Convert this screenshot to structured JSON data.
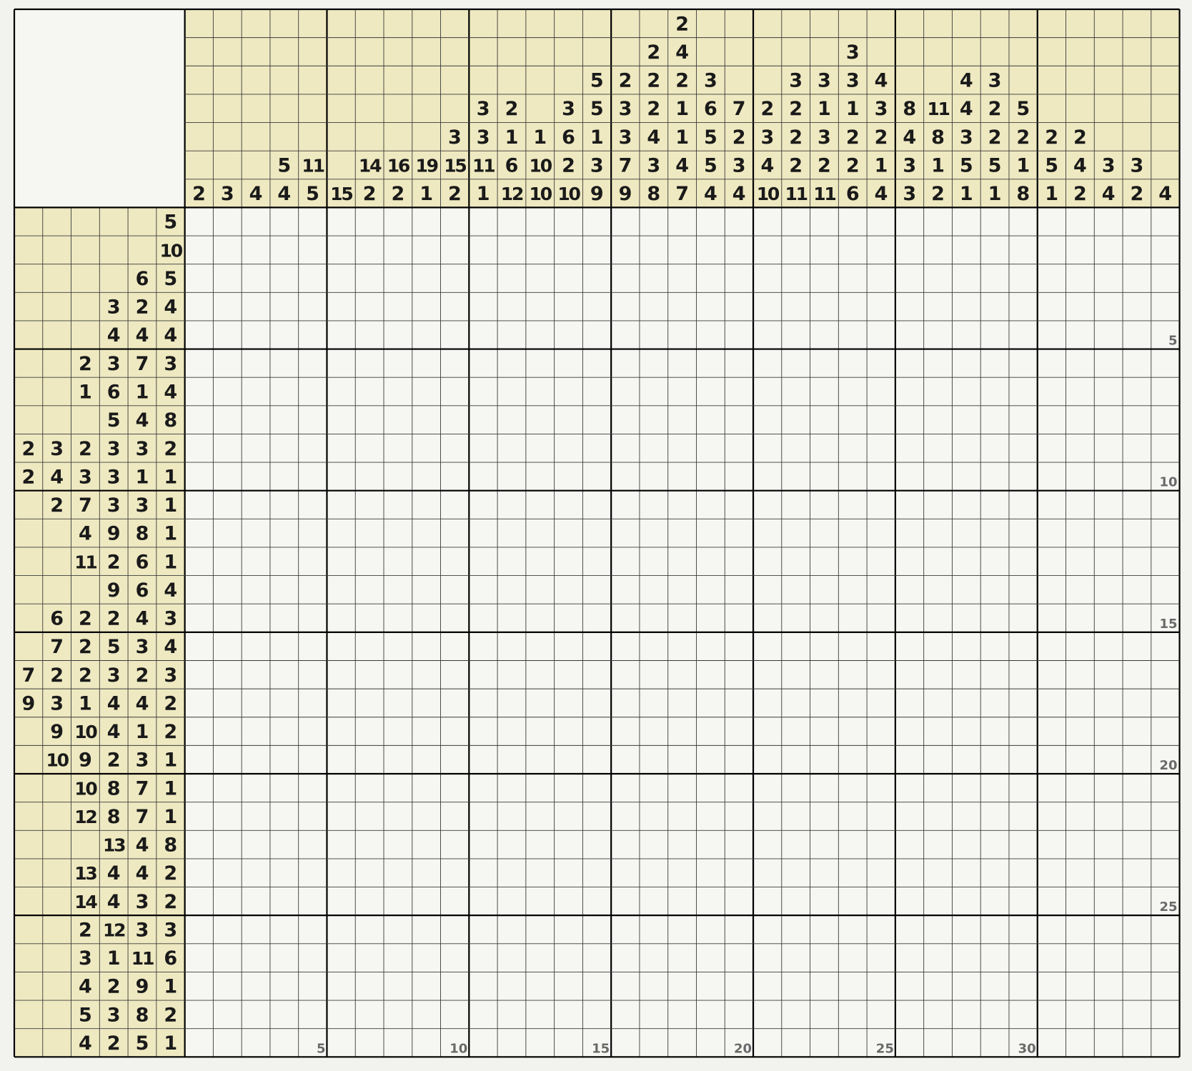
{
  "puzzle": {
    "colors": {
      "page_bg": "#f2f2ee",
      "clue_bg": "#efe9c1",
      "grid_bg": "#f6f6f3",
      "thin_line": "#3a3a3a",
      "thick_line": "#000000",
      "clue_text": "#1a1a1a",
      "index_text": "#6a6a6a"
    },
    "col_clues": [
      [
        "2"
      ],
      [
        "3"
      ],
      [
        "4"
      ],
      [
        "5",
        "4"
      ],
      [
        "11",
        "5"
      ],
      [
        "15"
      ],
      [
        "14",
        "2"
      ],
      [
        "16",
        "2"
      ],
      [
        "19",
        "1"
      ],
      [
        "3",
        "15",
        "2"
      ],
      [
        "3",
        "3",
        "11",
        "1"
      ],
      [
        "2",
        "1",
        "6",
        "12"
      ],
      [
        "1",
        "10",
        "10"
      ],
      [
        "3",
        "6",
        "2",
        "10"
      ],
      [
        "5",
        "5",
        "1",
        "3",
        "9"
      ],
      [
        "2",
        "3",
        "3",
        "7",
        "9"
      ],
      [
        "2",
        "2",
        "2",
        "4",
        "3",
        "8"
      ],
      [
        "2",
        "4",
        "2",
        "1",
        "1",
        "4",
        "7"
      ],
      [
        "3",
        "6",
        "5",
        "5",
        "4"
      ],
      [
        "7",
        "2",
        "3",
        "4"
      ],
      [
        "2",
        "3",
        "4",
        "10"
      ],
      [
        "3",
        "2",
        "2",
        "2",
        "11"
      ],
      [
        "3",
        "1",
        "3",
        "2",
        "11"
      ],
      [
        "3",
        "3",
        "1",
        "2",
        "2",
        "6"
      ],
      [
        "4",
        "3",
        "2",
        "1",
        "4"
      ],
      [
        "8",
        "4",
        "3",
        "3"
      ],
      [
        "11",
        "8",
        "1",
        "2"
      ],
      [
        "4",
        "4",
        "3",
        "5",
        "1"
      ],
      [
        "3",
        "2",
        "2",
        "5",
        "1"
      ],
      [
        "5",
        "2",
        "1",
        "8"
      ],
      [
        "2",
        "5",
        "1"
      ],
      [
        "2",
        "4",
        "2"
      ],
      [
        "3",
        "4"
      ],
      [
        "3",
        "2"
      ],
      [
        "4"
      ]
    ],
    "row_clues": [
      [
        "5"
      ],
      [
        "10"
      ],
      [
        "6",
        "5"
      ],
      [
        "3",
        "2",
        "4"
      ],
      [
        "4",
        "4",
        "4"
      ],
      [
        "2",
        "3",
        "7",
        "3"
      ],
      [
        "1",
        "6",
        "1",
        "4"
      ],
      [
        "5",
        "4",
        "8"
      ],
      [
        "2",
        "3",
        "2",
        "3",
        "3",
        "2"
      ],
      [
        "2",
        "4",
        "3",
        "3",
        "1",
        "1"
      ],
      [
        "2",
        "7",
        "3",
        "3",
        "1"
      ],
      [
        "4",
        "9",
        "8",
        "1"
      ],
      [
        "11",
        "2",
        "6",
        "1"
      ],
      [
        "9",
        "6",
        "4"
      ],
      [
        "6",
        "2",
        "2",
        "4",
        "3"
      ],
      [
        "7",
        "2",
        "5",
        "3",
        "4"
      ],
      [
        "7",
        "2",
        "2",
        "3",
        "2",
        "3"
      ],
      [
        "9",
        "3",
        "1",
        "4",
        "4",
        "2"
      ],
      [
        "9",
        "10",
        "4",
        "1",
        "2"
      ],
      [
        "10",
        "9",
        "2",
        "3",
        "1"
      ],
      [
        "10",
        "8",
        "7",
        "1"
      ],
      [
        "12",
        "8",
        "7",
        "1"
      ],
      [
        "13",
        "4",
        "8"
      ],
      [
        "13",
        "4",
        "4",
        "2"
      ],
      [
        "14",
        "4",
        "3",
        "2"
      ],
      [
        "2",
        "12",
        "3",
        "3"
      ],
      [
        "3",
        "1",
        "11",
        "6"
      ],
      [
        "4",
        "2",
        "9",
        "1"
      ],
      [
        "5",
        "3",
        "8",
        "2"
      ],
      [
        "4",
        "2",
        "5",
        "1"
      ]
    ],
    "col_index_labels": [
      "5",
      "10",
      "15",
      "20",
      "25",
      "30"
    ],
    "row_index_labels": [
      "5",
      "10",
      "15",
      "20",
      "25"
    ]
  }
}
